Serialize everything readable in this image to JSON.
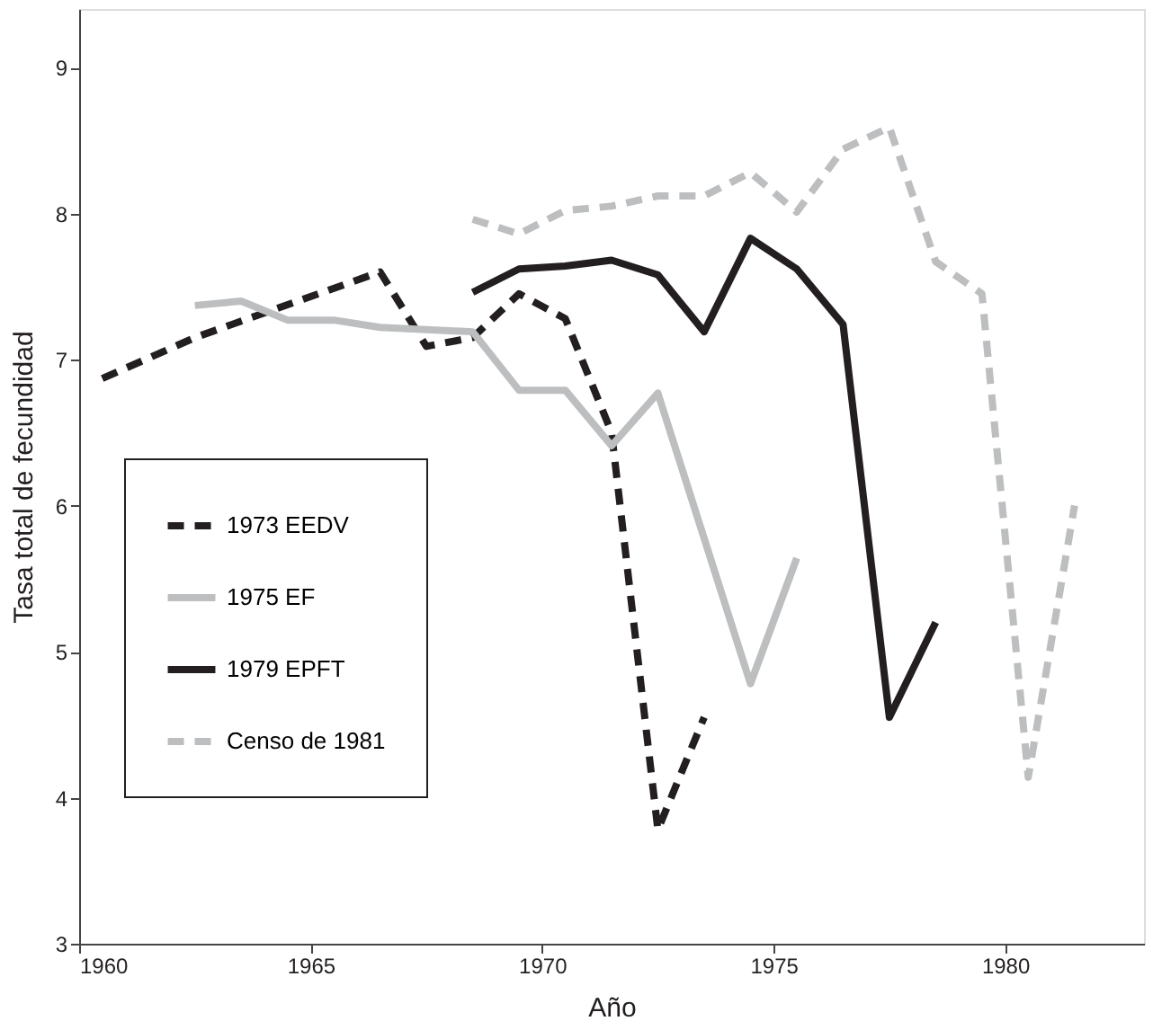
{
  "chart_data": {
    "type": "line",
    "xlabel": "Año",
    "ylabel": "Tasa total de fecundidad",
    "xlim": [
      1960,
      1983
    ],
    "xticks": [
      1960,
      1965,
      1970,
      1975,
      1980
    ],
    "ylim": [
      3,
      9.4
    ],
    "yticks": [
      3,
      4,
      5,
      6,
      7,
      8,
      9
    ],
    "grid": false,
    "legend": "left",
    "marker": "none",
    "series": [
      {
        "name": "1973 EEDV",
        "color": "#231f20",
        "line_style": "dashed",
        "x": [
          1960.5,
          1962.5,
          1966.5,
          1967.5,
          1968.5,
          1969.5,
          1970.5,
          1971.5,
          1972.5,
          1973.5
        ],
        "values": [
          6.87,
          7.15,
          7.6,
          7.09,
          7.15,
          7.45,
          7.28,
          6.5,
          3.78,
          4.55
        ]
      },
      {
        "name": "1975 EF",
        "color": "#bcbec0",
        "line_style": "solid",
        "x": [
          1962.5,
          1963.5,
          1964.5,
          1965.5,
          1966.5,
          1968.5,
          1969.5,
          1970.5,
          1971.5,
          1972.5,
          1974.5,
          1975.5
        ],
        "values": [
          7.37,
          7.4,
          7.27,
          7.27,
          7.22,
          7.19,
          6.79,
          6.79,
          6.41,
          6.77,
          4.78,
          5.64
        ]
      },
      {
        "name": "1979 EPFT",
        "color": "#231f20",
        "line_style": "solid",
        "x": [
          1968.5,
          1969.5,
          1970.5,
          1971.5,
          1972.5,
          1973.5,
          1974.5,
          1975.5,
          1976.5,
          1977.5,
          1978.5
        ],
        "values": [
          7.46,
          7.62,
          7.64,
          7.68,
          7.58,
          7.19,
          7.83,
          7.62,
          7.24,
          4.55,
          5.2
        ]
      },
      {
        "name": "Censo de 1981",
        "color": "#bcbec0",
        "line_style": "dashed",
        "x": [
          1968.5,
          1969.5,
          1970.5,
          1971.5,
          1972.5,
          1973.5,
          1974.5,
          1975.5,
          1976.5,
          1977.5,
          1978.5,
          1979.5,
          1980.5,
          1981.5
        ],
        "values": [
          7.96,
          7.86,
          8.02,
          8.05,
          8.12,
          8.12,
          8.28,
          8.01,
          8.44,
          8.59,
          7.67,
          7.45,
          4.14,
          6.0
        ]
      }
    ]
  }
}
